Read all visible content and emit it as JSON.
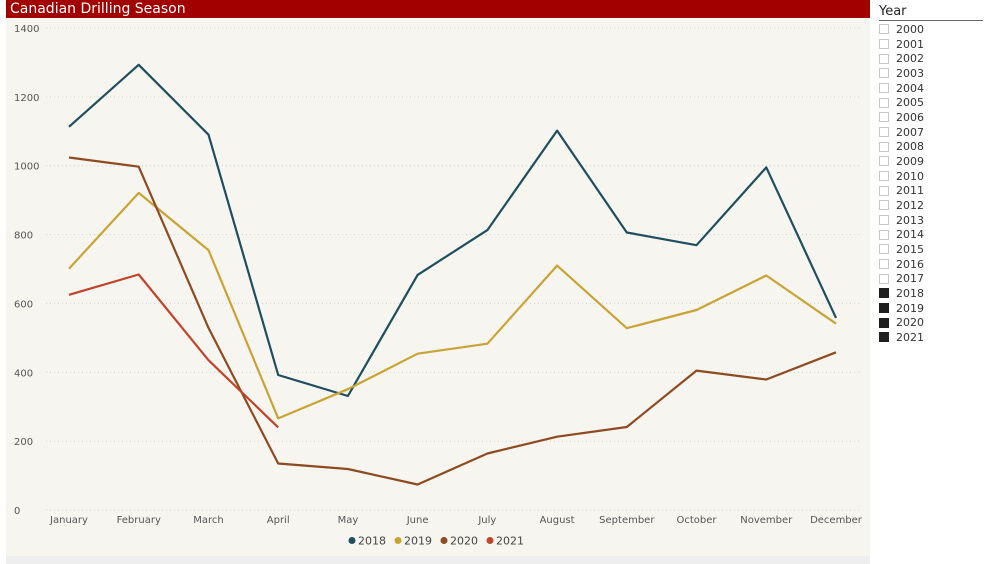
{
  "title": "Canadian Drilling Season",
  "slicer": {
    "header": "Year",
    "items": [
      {
        "label": "2000",
        "checked": false
      },
      {
        "label": "2001",
        "checked": false
      },
      {
        "label": "2002",
        "checked": false
      },
      {
        "label": "2003",
        "checked": false
      },
      {
        "label": "2004",
        "checked": false
      },
      {
        "label": "2005",
        "checked": false
      },
      {
        "label": "2006",
        "checked": false
      },
      {
        "label": "2007",
        "checked": false
      },
      {
        "label": "2008",
        "checked": false
      },
      {
        "label": "2009",
        "checked": false
      },
      {
        "label": "2010",
        "checked": false
      },
      {
        "label": "2011",
        "checked": false
      },
      {
        "label": "2012",
        "checked": false
      },
      {
        "label": "2013",
        "checked": false
      },
      {
        "label": "2014",
        "checked": false
      },
      {
        "label": "2015",
        "checked": false
      },
      {
        "label": "2016",
        "checked": false
      },
      {
        "label": "2017",
        "checked": false
      },
      {
        "label": "2018",
        "checked": true
      },
      {
        "label": "2019",
        "checked": true
      },
      {
        "label": "2020",
        "checked": true
      },
      {
        "label": "2021",
        "checked": true
      }
    ]
  },
  "chart_data": {
    "type": "line",
    "title": "Canadian Drilling Season",
    "xlabel": "",
    "ylabel": "",
    "categories": [
      "January",
      "February",
      "March",
      "April",
      "May",
      "June",
      "July",
      "August",
      "September",
      "October",
      "November",
      "December"
    ],
    "ylim": [
      0,
      1400
    ],
    "yticks": [
      0,
      200,
      400,
      600,
      800,
      1000,
      1200,
      1400
    ],
    "grid": true,
    "legend_position": "bottom-center",
    "series": [
      {
        "name": "2018",
        "color": "#1f4e5f",
        "values": [
          1113,
          1293,
          1090,
          392,
          331,
          683,
          813,
          1102,
          806,
          769,
          995,
          558
        ]
      },
      {
        "name": "2019",
        "color": "#c9a435",
        "values": [
          701,
          921,
          755,
          266,
          351,
          454,
          483,
          710,
          528,
          581,
          681,
          541
        ]
      },
      {
        "name": "2020",
        "color": "#8e4a20",
        "values": [
          1024,
          997,
          529,
          135,
          119,
          74,
          164,
          213,
          241,
          405,
          379,
          458
        ]
      },
      {
        "name": "2021",
        "color": "#c0442a",
        "values": [
          625,
          684,
          435,
          240,
          null,
          null,
          null,
          null,
          null,
          null,
          null,
          null
        ]
      }
    ]
  }
}
